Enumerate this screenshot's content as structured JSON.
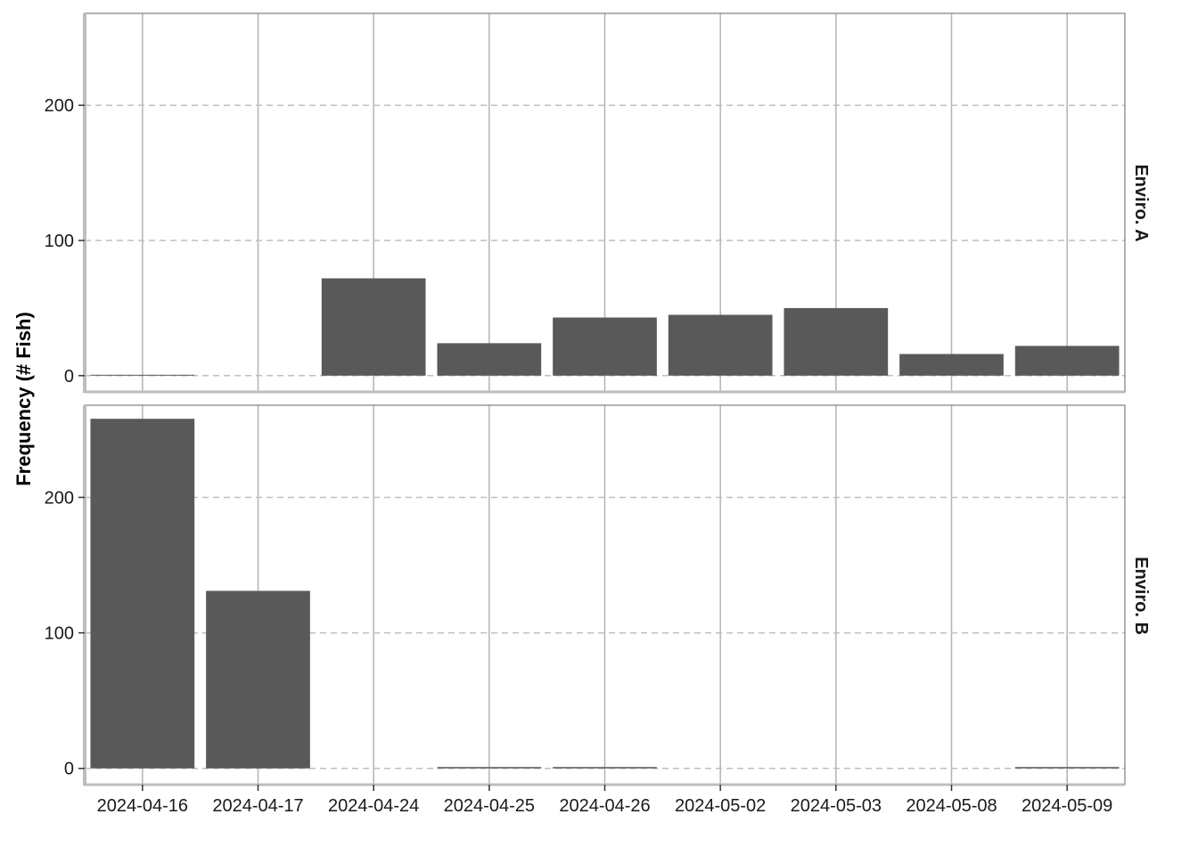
{
  "chart_data": {
    "type": "bar",
    "ylabel": "Frequency (# Fish)",
    "xlabel": "",
    "categories": [
      "2024-04-16",
      "2024-04-17",
      "2024-04-24",
      "2024-04-25",
      "2024-04-26",
      "2024-05-02",
      "2024-05-03",
      "2024-05-08",
      "2024-05-09"
    ],
    "yticks": [
      0,
      100,
      200
    ],
    "ylim": [
      -12,
      268
    ],
    "grid": true,
    "bar_color": "#595959",
    "panels": [
      {
        "name": "Enviro. A",
        "values": [
          0,
          0,
          72,
          24,
          43,
          45,
          50,
          16,
          22
        ]
      },
      {
        "name": "Enviro. B",
        "values": [
          258,
          131,
          0,
          1,
          1,
          0,
          0,
          0,
          1
        ]
      }
    ]
  }
}
